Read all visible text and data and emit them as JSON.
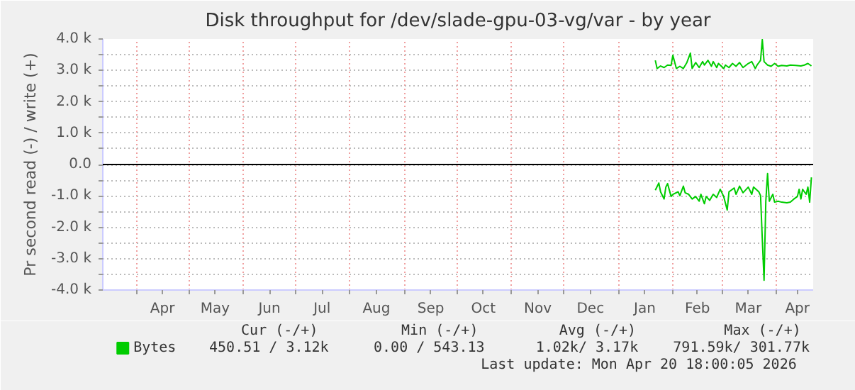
{
  "chart_data": {
    "type": "line",
    "title": "Disk throughput for /dev/slade-gpu-03-vg/var - by year",
    "ylabel": "Pr second read (-) / write (+)",
    "xlim": [
      "2025-03-13",
      "2026-04-22"
    ],
    "xticks": [
      {
        "value": "2025-04-01",
        "label": null
      },
      {
        "value": "2025-04-16",
        "label": "Apr"
      },
      {
        "value": "2025-05-01",
        "label": null
      },
      {
        "value": "2025-05-16",
        "label": "May"
      },
      {
        "value": "2025-06-01",
        "label": null
      },
      {
        "value": "2025-06-16",
        "label": "Jun"
      },
      {
        "value": "2025-07-01",
        "label": null
      },
      {
        "value": "2025-07-16",
        "label": "Jul"
      },
      {
        "value": "2025-08-01",
        "label": null
      },
      {
        "value": "2025-08-16",
        "label": "Aug"
      },
      {
        "value": "2025-09-01",
        "label": null
      },
      {
        "value": "2025-09-16",
        "label": "Sep"
      },
      {
        "value": "2025-10-01",
        "label": null
      },
      {
        "value": "2025-10-16",
        "label": "Oct"
      },
      {
        "value": "2025-11-01",
        "label": null
      },
      {
        "value": "2025-11-16",
        "label": "Nov"
      },
      {
        "value": "2025-12-01",
        "label": null
      },
      {
        "value": "2025-12-16",
        "label": "Dec"
      },
      {
        "value": "2026-01-01",
        "label": null
      },
      {
        "value": "2026-01-16",
        "label": "Jan"
      },
      {
        "value": "2026-02-01",
        "label": null
      },
      {
        "value": "2026-02-15",
        "label": "Feb"
      },
      {
        "value": "2026-03-01",
        "label": null
      },
      {
        "value": "2026-03-16",
        "label": "Mar"
      },
      {
        "value": "2026-04-01",
        "label": null
      },
      {
        "value": "2026-04-13",
        "label": "Apr"
      }
    ],
    "ylim": [
      -4000,
      4000
    ],
    "yticks": [
      {
        "value": -4000,
        "label": "-4.0 k"
      },
      {
        "value": -3500,
        "label": null
      },
      {
        "value": -3000,
        "label": "-3.0 k"
      },
      {
        "value": -2500,
        "label": null
      },
      {
        "value": -2000,
        "label": "-2.0 k"
      },
      {
        "value": -1500,
        "label": null
      },
      {
        "value": -1000,
        "label": "-1.0 k"
      },
      {
        "value": -500,
        "label": null
      },
      {
        "value": 0,
        "label": "0.0"
      },
      {
        "value": 500,
        "label": null
      },
      {
        "value": 1000,
        "label": "1.0 k"
      },
      {
        "value": 1500,
        "label": null
      },
      {
        "value": 2000,
        "label": "2.0 k"
      },
      {
        "value": 2500,
        "label": null
      },
      {
        "value": 3000,
        "label": "3.0 k"
      },
      {
        "value": 3500,
        "label": null
      },
      {
        "value": 4000,
        "label": "4.0 k"
      }
    ],
    "grid": true,
    "legend": "bottom",
    "marker": "none",
    "line_style": "solid",
    "ref_lines": [
      {
        "axis": "y",
        "value": 0,
        "label": null,
        "color": "#000000"
      }
    ],
    "series": [
      {
        "name": "Bytes",
        "color": "#00cc00",
        "x": [
          "2026-01-22",
          "2026-01-23",
          "2026-01-25",
          "2026-01-27",
          "2026-01-29",
          "2026-01-31",
          "2026-02-01",
          "2026-02-03",
          "2026-02-05",
          "2026-02-07",
          "2026-02-09",
          "2026-02-11",
          "2026-02-12",
          "2026-02-14",
          "2026-02-16",
          "2026-02-18",
          "2026-02-19",
          "2026-02-21",
          "2026-02-23",
          "2026-02-24",
          "2026-02-26",
          "2026-02-27",
          "2026-03-02",
          "2026-03-03",
          "2026-03-05",
          "2026-03-07",
          "2026-03-09",
          "2026-03-11",
          "2026-03-13",
          "2026-03-16",
          "2026-03-18",
          "2026-03-20",
          "2026-03-21",
          "2026-03-23",
          "2026-03-24",
          "2026-03-25",
          "2026-03-27",
          "2026-03-29",
          "2026-03-31",
          "2026-04-02",
          "2026-04-04",
          "2026-04-07",
          "2026-04-09",
          "2026-04-12",
          "2026-04-15",
          "2026-04-17",
          "2026-04-19",
          "2026-04-21"
        ],
        "values": [
          3320,
          3060,
          3140,
          3090,
          3170,
          3160,
          3480,
          3060,
          3130,
          3060,
          3250,
          3550,
          3060,
          3250,
          3090,
          3280,
          3170,
          3320,
          3130,
          3280,
          3090,
          3220,
          3060,
          3170,
          3090,
          3220,
          3130,
          3250,
          3090,
          3220,
          3280,
          3060,
          3170,
          3320,
          3980,
          3280,
          3170,
          3130,
          3220,
          3130,
          3160,
          3140,
          3170,
          3160,
          3140,
          3170,
          3220,
          3140
        ]
      },
      {
        "color": "#00cc00",
        "x": [
          "2026-01-22",
          "2026-01-24",
          "2026-01-25",
          "2026-01-27",
          "2026-01-28",
          "2026-01-29",
          "2026-01-31",
          "2026-02-01",
          "2026-02-04",
          "2026-02-05",
          "2026-02-07",
          "2026-02-08",
          "2026-02-10",
          "2026-02-12",
          "2026-02-14",
          "2026-02-16",
          "2026-02-17",
          "2026-02-19",
          "2026-02-20",
          "2026-02-22",
          "2026-02-24",
          "2026-02-26",
          "2026-02-28",
          "2026-03-02",
          "2026-03-04",
          "2026-03-05",
          "2026-03-08",
          "2026-03-09",
          "2026-03-11",
          "2026-03-13",
          "2026-03-16",
          "2026-03-18",
          "2026-03-19",
          "2026-03-22",
          "2026-03-23",
          "2026-03-24",
          "2026-03-25",
          "2026-03-26",
          "2026-03-27",
          "2026-03-28",
          "2026-03-30",
          "2026-03-31",
          "2026-04-02",
          "2026-04-04",
          "2026-04-07",
          "2026-04-09",
          "2026-04-11",
          "2026-04-13",
          "2026-04-14",
          "2026-04-15",
          "2026-04-16",
          "2026-04-18",
          "2026-04-19",
          "2026-04-20",
          "2026-04-21"
        ],
        "values": [
          -820,
          -590,
          -870,
          -1100,
          -720,
          -610,
          -1020,
          -950,
          -870,
          -990,
          -690,
          -900,
          -950,
          -1100,
          -1020,
          -1170,
          -950,
          -1250,
          -1020,
          -1140,
          -950,
          -1050,
          -790,
          -1020,
          -1450,
          -870,
          -750,
          -950,
          -690,
          -900,
          -720,
          -950,
          -720,
          -870,
          -990,
          -2390,
          -3690,
          -1170,
          -290,
          -1170,
          -950,
          -1200,
          -1170,
          -1200,
          -1220,
          -1200,
          -1100,
          -1020,
          -790,
          -1100,
          -790,
          -950,
          -720,
          -1200,
          -410
        ]
      }
    ],
    "annotations": [
      "Cur (-/+)",
      "Min (-/+)",
      "Avg (-/+)",
      "Max (-/+)",
      "450.51 / 3.12k",
      "0.00 / 543.13",
      "1.02k/ 3.17k",
      "791.59k/ 301.77k",
      "Last update: Mon Apr 20 18:00:05 2026"
    ]
  }
}
